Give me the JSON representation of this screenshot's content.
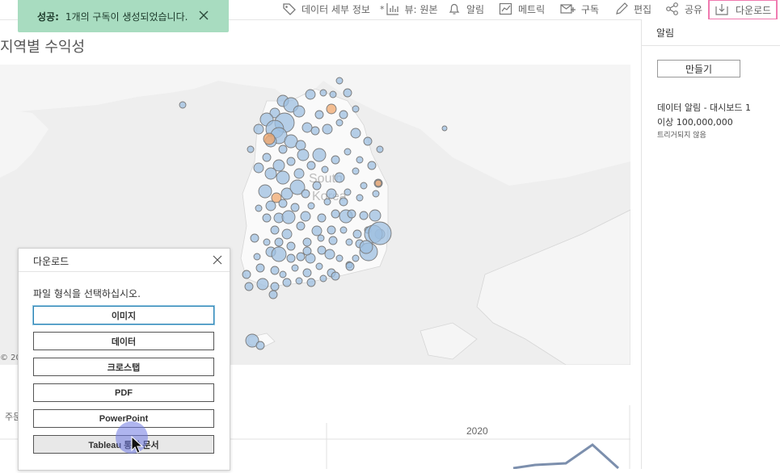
{
  "toolbar": {
    "items": [
      {
        "label": "데이터 세부 정보",
        "icon": "tag-icon"
      },
      {
        "label": "뷰: 원본",
        "icon": "view-icon",
        "prefix": "*"
      },
      {
        "label": "알림",
        "icon": "bell-icon"
      },
      {
        "label": "메트릭",
        "icon": "metric-icon"
      },
      {
        "label": "구독",
        "icon": "subscribe-icon"
      },
      {
        "label": "편집",
        "icon": "pencil-icon"
      },
      {
        "label": "공유",
        "icon": "share-icon"
      },
      {
        "label": "다운로드",
        "icon": "download-icon"
      }
    ],
    "highlight_color": "#f07ab0"
  },
  "toast": {
    "prefix": "성공:",
    "message": "1개의 구독이 생성되었습니다.",
    "bg_color": "#a8dcc0"
  },
  "dashboard": {
    "title": "지역별 수익성",
    "map": {
      "country_label_1": "South",
      "country_label_2": "Korea",
      "copyright": "© 20",
      "point_color": "#9ebfe0",
      "accent_point_color": "#f0a86e"
    },
    "lower_chart": {
      "year_label": "2020",
      "week_label": "주문"
    }
  },
  "alerts_panel": {
    "title": "알림",
    "create_button": "만들기",
    "alert_name": "데이터 알림 - 대시보드 1",
    "alert_condition": "이상 100,000,000",
    "alert_status": "트리거되지 않음"
  },
  "download_dialog": {
    "title": "다운로드",
    "prompt": "파일 형식을 선택하십시오.",
    "options": [
      "이미지",
      "데이터",
      "크로스탭",
      "PDF",
      "PowerPoint",
      "Tableau 통합 문서"
    ]
  }
}
